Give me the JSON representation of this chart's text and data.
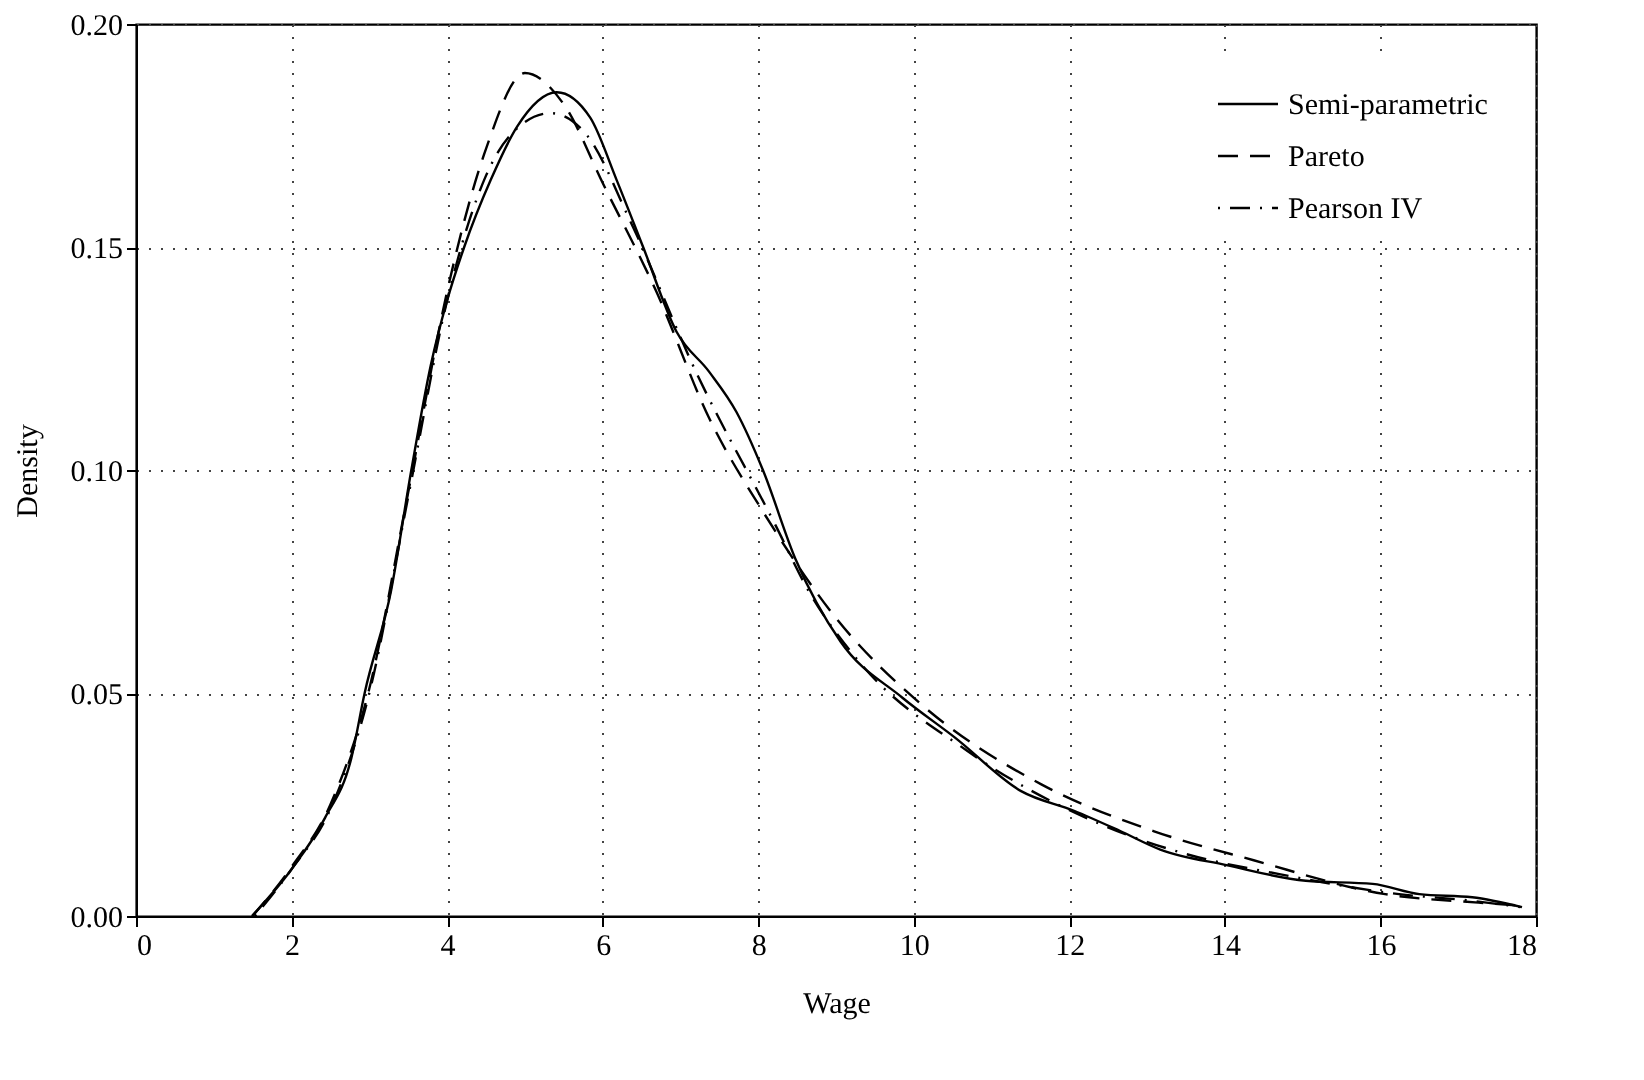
{
  "chart_data": {
    "type": "line",
    "xlabel": "Wage",
    "ylabel": "Density",
    "xlim": [
      0,
      18
    ],
    "xticks": [
      0,
      2,
      4,
      6,
      8,
      10,
      12,
      14,
      16,
      18
    ],
    "ylim": [
      0,
      0.2
    ],
    "yticks": [
      {
        "value": 0,
        "label": "0.00"
      },
      {
        "value": 0.05,
        "label": "0.05"
      },
      {
        "value": 0.1,
        "label": "0.10"
      },
      {
        "value": 0.15,
        "label": "0.15"
      },
      {
        "value": 0.2,
        "label": "0.20"
      }
    ],
    "grid": true,
    "legend": "top right",
    "marker": "none",
    "series": [
      {
        "name": "Semi-parametric",
        "color": "#000000",
        "line_style": "solid",
        "x": [
          1.49,
          2.0,
          2.43,
          2.77,
          2.94,
          3.28,
          3.54,
          3.79,
          4.0,
          4.22,
          4.56,
          4.9,
          5.41,
          5.84,
          6.18,
          6.52,
          6.95,
          7.37,
          7.72,
          8.06,
          8.48,
          9.06,
          9.85,
          10.53,
          11.38,
          12.06,
          12.66,
          13.17,
          14.02,
          15.04,
          15.9,
          16.5,
          17.18,
          17.82
        ],
        "values": [
          0.0,
          0.0105,
          0.022,
          0.0355,
          0.05,
          0.073,
          0.1,
          0.1235,
          0.138,
          0.15,
          0.165,
          0.177,
          0.1847,
          0.179,
          0.165,
          0.15,
          0.131,
          0.122,
          0.113,
          0.1,
          0.08,
          0.0615,
          0.049,
          0.04,
          0.028,
          0.0236,
          0.019,
          0.0149,
          0.0114,
          0.0079,
          0.0072,
          0.0049,
          0.0042,
          0.002
        ]
      },
      {
        "name": "Pareto",
        "color": "#000000",
        "line_style": "dashed",
        "x": [
          1.5,
          2.0,
          2.5,
          3.0,
          3.5,
          4.0,
          4.5,
          5.0,
          5.5,
          6.01,
          6.69,
          7.37,
          8.06,
          9.0,
          10.1,
          11.64,
          13.09,
          14.37,
          16.06,
          17.26,
          17.75
        ],
        "values": [
          0.0,
          0.011,
          0.025,
          0.051,
          0.095,
          0.14,
          0.172,
          0.189,
          0.182,
          0.164,
          0.14,
          0.1116,
          0.0907,
          0.0668,
          0.0474,
          0.0295,
          0.019,
          0.0125,
          0.0049,
          0.003,
          0.0024
        ]
      },
      {
        "name": "Pearson IV",
        "color": "#000000",
        "line_style": "dashdot",
        "x": [
          1.53,
          2.0,
          2.5,
          3.0,
          3.5,
          4.0,
          4.5,
          5.0,
          5.33,
          5.8,
          6.35,
          7.2,
          8.22,
          8.65,
          9.25,
          10.69,
          12.4,
          13.5,
          14.7,
          16.24,
          17.18,
          17.8
        ],
        "values": [
          0.0,
          0.0105,
          0.024,
          0.05,
          0.094,
          0.138,
          0.166,
          0.178,
          0.18,
          0.175,
          0.156,
          0.122,
          0.0877,
          0.0728,
          0.058,
          0.037,
          0.0206,
          0.0139,
          0.0094,
          0.0049,
          0.0034,
          0.002
        ]
      }
    ]
  }
}
